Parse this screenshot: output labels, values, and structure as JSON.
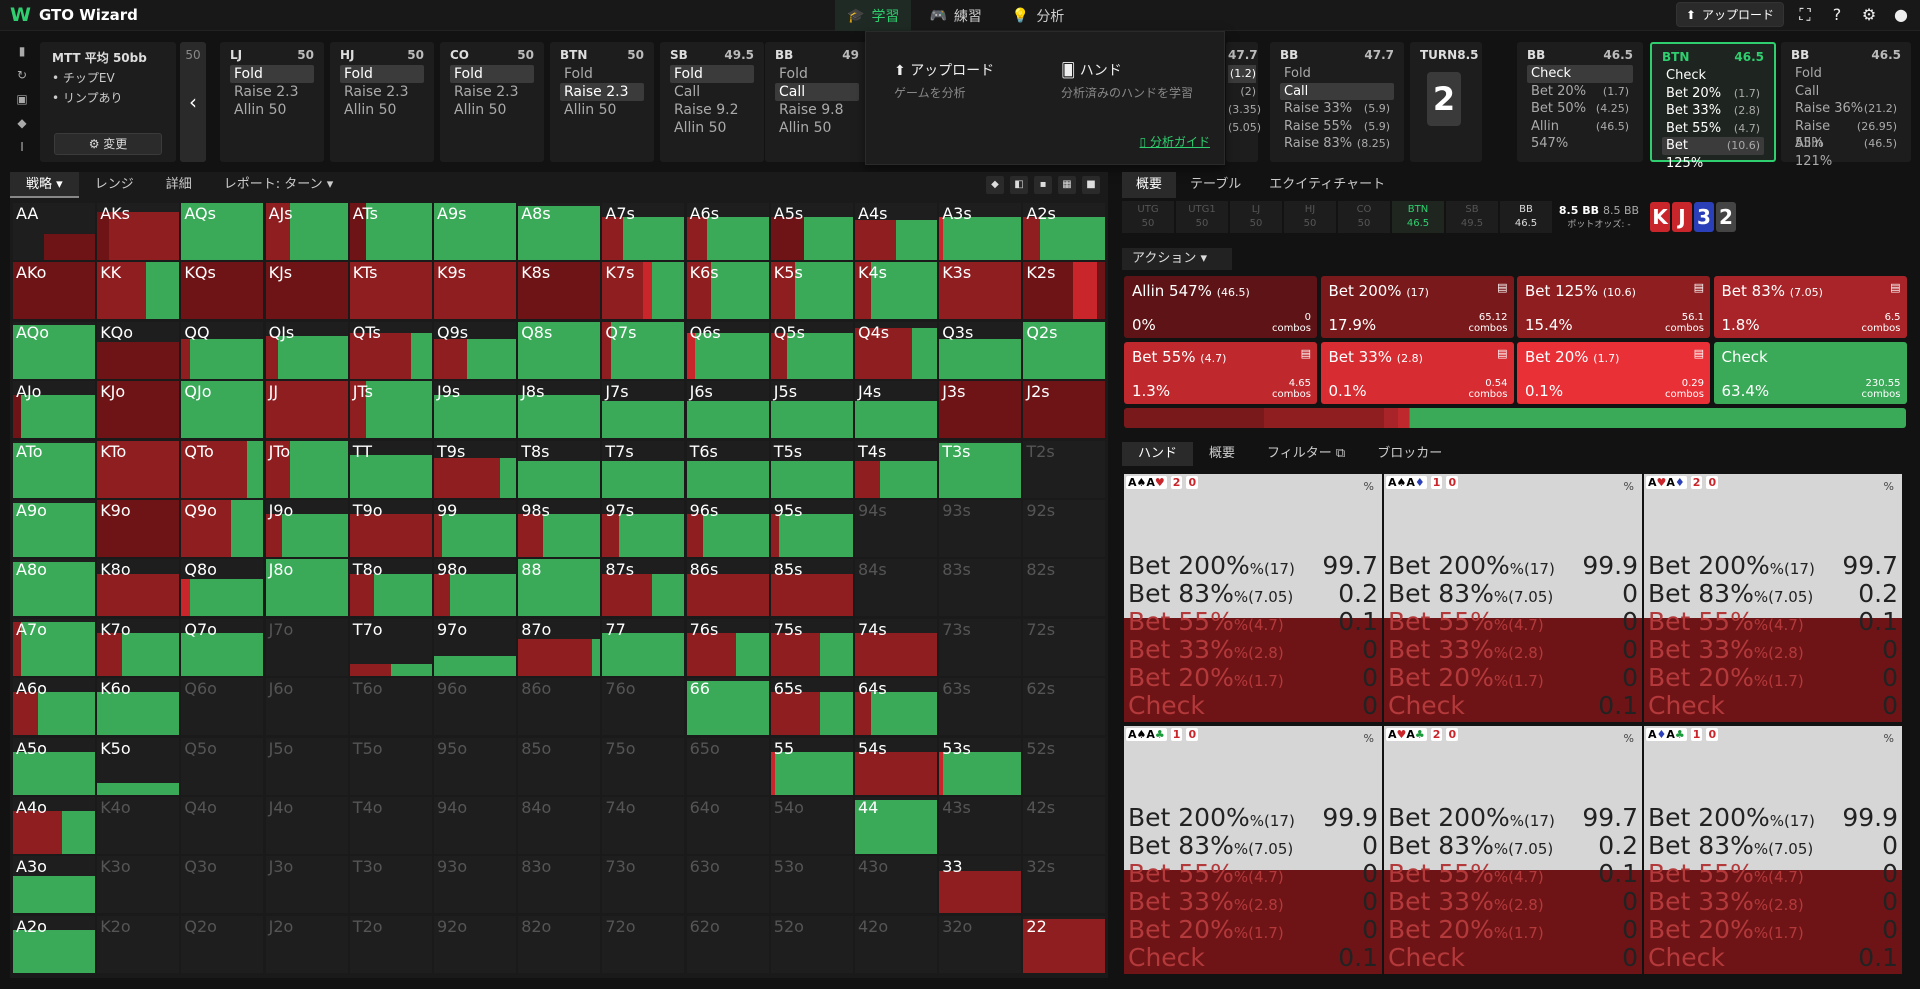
{
  "app": {
    "logo": "W",
    "title": "GTO Wizard"
  },
  "nav": [
    {
      "label": "学習",
      "icon": "graduation-icon",
      "active": true
    },
    {
      "label": "練習",
      "icon": "gamepad-icon",
      "active": false
    },
    {
      "label": "分析",
      "icon": "bulb-icon",
      "active": false
    }
  ],
  "top_right": {
    "upload": "アップロード"
  },
  "mtt": {
    "title": "MTT 平均 50bb",
    "bullets": [
      "• チップEV",
      "• リンプあり"
    ],
    "change": "変更"
  },
  "scroll_stack": "50",
  "positions": [
    {
      "name": "LJ",
      "stack": "50",
      "opts": [
        {
          "l": "Fold",
          "sel": true
        },
        {
          "l": "Raise 2.3"
        },
        {
          "l": "Allin 50"
        }
      ]
    },
    {
      "name": "HJ",
      "stack": "50",
      "opts": [
        {
          "l": "Fold",
          "sel": true
        },
        {
          "l": "Raise 2.3"
        },
        {
          "l": "Allin 50"
        }
      ]
    },
    {
      "name": "CO",
      "stack": "50",
      "opts": [
        {
          "l": "Fold",
          "sel": true
        },
        {
          "l": "Raise 2.3"
        },
        {
          "l": "Allin 50"
        }
      ]
    },
    {
      "name": "BTN",
      "stack": "50",
      "opts": [
        {
          "l": "Fold"
        },
        {
          "l": "Raise 2.3",
          "sel": true
        },
        {
          "l": "Allin 50"
        }
      ]
    },
    {
      "name": "SB",
      "stack": "49.5",
      "opts": [
        {
          "l": "Fold",
          "sel": true
        },
        {
          "l": "Call"
        },
        {
          "l": "Raise 9.2"
        },
        {
          "l": "Allin 50"
        }
      ]
    },
    {
      "name": "BB",
      "stack": "49",
      "opts": [
        {
          "l": "Fold"
        },
        {
          "l": "Call",
          "sel": true
        },
        {
          "l": "Raise 9.8"
        },
        {
          "l": "Allin 50"
        }
      ]
    }
  ],
  "hidden_pos": {
    "stack": "47.7",
    "vals": [
      "(1.2)",
      "(2)",
      "(3.35)",
      "(5.05)"
    ]
  },
  "positions2": [
    {
      "name": "BB",
      "stack": "47.7",
      "opts": [
        {
          "l": "Fold"
        },
        {
          "l": "Call",
          "sel": true
        },
        {
          "l": "Raise 33%",
          "v": "(5.9)"
        },
        {
          "l": "Raise 55%",
          "v": "(5.9)"
        },
        {
          "l": "Raise 83%",
          "v": "(8.25)"
        }
      ]
    },
    {
      "name": "BB",
      "stack": "46.5",
      "opts": [
        {
          "l": "Check",
          "sel": true
        },
        {
          "l": "Bet 20%",
          "v": "(1.7)"
        },
        {
          "l": "Bet 50%",
          "v": "(4.25)"
        },
        {
          "l": "Allin 547%",
          "v": "(46.5)"
        }
      ]
    },
    {
      "name": "BTN",
      "stack": "46.5",
      "opts": [
        {
          "l": "Check"
        },
        {
          "l": "Bet 20%",
          "v": "(1.7)"
        },
        {
          "l": "Bet 33%",
          "v": "(2.8)"
        },
        {
          "l": "Bet 55%",
          "v": "(4.7)"
        },
        {
          "l": "Bet 125%",
          "v": "(10.6)",
          "sel": true
        }
      ]
    },
    {
      "name": "BB",
      "stack": "46.5",
      "opts": [
        {
          "l": "Fold"
        },
        {
          "l": "Call"
        },
        {
          "l": "Raise 36%",
          "v": "(21.2)"
        },
        {
          "l": "Raise 55%",
          "v": "(26.95)"
        },
        {
          "l": "Allin 121%",
          "v": "(46.5)"
        }
      ]
    }
  ],
  "turn": {
    "label": "TURN",
    "size": "8.5",
    "card": "2"
  },
  "dropdown": {
    "upload": "アップロード",
    "upload_sub": "ゲームを分析",
    "hand": "ハンド",
    "hand_sub": "分析済みのハンドを学習",
    "guide": "分析ガイド"
  },
  "grid_tabs": [
    "戦略",
    "レンジ",
    "詳細",
    "レポート: ターン"
  ],
  "grid": [
    [
      "AA",
      "AKs",
      "AQs",
      "AJs",
      "ATs",
      "A9s",
      "A8s",
      "A7s",
      "A6s",
      "A5s",
      "A4s",
      "A3s",
      "A2s"
    ],
    [
      "AKo",
      "KK",
      "KQs",
      "KJs",
      "KTs",
      "K9s",
      "K8s",
      "K7s",
      "K6s",
      "K5s",
      "K4s",
      "K3s",
      "K2s"
    ],
    [
      "AQo",
      "KQo",
      "QQ",
      "QJs",
      "QTs",
      "Q9s",
      "Q8s",
      "Q7s",
      "Q6s",
      "Q5s",
      "Q4s",
      "Q3s",
      "Q2s"
    ],
    [
      "AJo",
      "KJo",
      "QJo",
      "JJ",
      "JTs",
      "J9s",
      "J8s",
      "J7s",
      "J6s",
      "J5s",
      "J4s",
      "J3s",
      "J2s"
    ],
    [
      "ATo",
      "KTo",
      "QTo",
      "JTo",
      "TT",
      "T9s",
      "T8s",
      "T7s",
      "T6s",
      "T5s",
      "T4s",
      "T3s",
      "T2s"
    ],
    [
      "A9o",
      "K9o",
      "Q9o",
      "J9o",
      "T9o",
      "99",
      "98s",
      "97s",
      "96s",
      "95s",
      "94s",
      "93s",
      "92s"
    ],
    [
      "A8o",
      "K8o",
      "Q8o",
      "J8o",
      "T8o",
      "98o",
      "88",
      "87s",
      "86s",
      "85s",
      "84s",
      "83s",
      "82s"
    ],
    [
      "A7o",
      "K7o",
      "Q7o",
      "J7o",
      "T7o",
      "97o",
      "87o",
      "77",
      "76s",
      "75s",
      "74s",
      "73s",
      "72s"
    ],
    [
      "A6o",
      "K6o",
      "Q6o",
      "J6o",
      "T6o",
      "96o",
      "86o",
      "76o",
      "66",
      "65s",
      "64s",
      "63s",
      "62s"
    ],
    [
      "A5o",
      "K5o",
      "Q5o",
      "J5o",
      "T5o",
      "95o",
      "85o",
      "75o",
      "65o",
      "55",
      "54s",
      "53s",
      "52s"
    ],
    [
      "A4o",
      "K4o",
      "Q4o",
      "J4o",
      "T4o",
      "94o",
      "84o",
      "74o",
      "64o",
      "54o",
      "44",
      "43s",
      "42s"
    ],
    [
      "A3o",
      "K3o",
      "Q3o",
      "J3o",
      "T3o",
      "93o",
      "83o",
      "73o",
      "63o",
      "53o",
      "43o",
      "33",
      "32s"
    ],
    [
      "A2o",
      "K2o",
      "Q2o",
      "J2o",
      "T2o",
      "92o",
      "82o",
      "72o",
      "62o",
      "52o",
      "42o",
      "32o",
      "22"
    ]
  ],
  "right_tabs": [
    "概要",
    "テーブル",
    "エクイティチャート"
  ],
  "seats": [
    {
      "n": "UTG",
      "s": "50"
    },
    {
      "n": "UTG1",
      "s": "50"
    },
    {
      "n": "LJ",
      "s": "50"
    },
    {
      "n": "HJ",
      "s": "50"
    },
    {
      "n": "CO",
      "s": "50"
    },
    {
      "n": "BTN",
      "s": "46.5",
      "act": true
    },
    {
      "n": "SB",
      "s": "49.5"
    },
    {
      "n": "BB",
      "s": "46.5",
      "on": true
    }
  ],
  "pot": {
    "main": "8.5 BB",
    "alt": "8.5 BB",
    "odds": "ポットオッズ: -"
  },
  "board": [
    {
      "r": "K",
      "c": "#c9262c"
    },
    {
      "r": "J",
      "c": "#c9262c"
    },
    {
      "r": "3",
      "c": "#2b3fb8"
    },
    {
      "r": "2",
      "c": "#444"
    }
  ],
  "action_label": "アクション",
  "actions": [
    {
      "name": "Allin 547%",
      "size": "(46.5)",
      "pct": "0%",
      "combos": "0",
      "color": "#5e1416"
    },
    {
      "name": "Bet 200%",
      "size": "(17)",
      "pct": "17.9%",
      "combos": "65.12",
      "color": "#7a191b"
    },
    {
      "name": "Bet 125%",
      "size": "(10.6)",
      "pct": "15.4%",
      "combos": "56.1",
      "color": "#8f1e21"
    },
    {
      "name": "Bet 83%",
      "size": "(7.05)",
      "pct": "1.8%",
      "combos": "6.5",
      "color": "#a82428"
    },
    {
      "name": "Bet 55%",
      "size": "(4.7)",
      "pct": "1.3%",
      "combos": "4.65",
      "color": "#bf282d"
    },
    {
      "name": "Bet 33%",
      "size": "(2.8)",
      "pct": "0.1%",
      "combos": "0.54",
      "color": "#d72c32"
    },
    {
      "name": "Bet 20%",
      "size": "(1.7)",
      "pct": "0.1%",
      "combos": "0.29",
      "color": "#ea3037"
    },
    {
      "name": "Check",
      "size": "",
      "pct": "63.4%",
      "combos": "230.55",
      "color": "#3aaa59"
    }
  ],
  "combos_label": "combos",
  "hand_tabs": [
    "ハンド",
    "概要",
    "フィルター",
    "ブロッカー"
  ],
  "hand_cards": [
    {
      "cards": "A♠A♥",
      "b1": "2",
      "b2": "0",
      "rows": [
        [
          "Bet 200%",
          "(17)",
          "99.7"
        ],
        [
          "Bet 83%",
          "(7.05)",
          "0.2"
        ],
        [
          "Bet 55%",
          "(4.7)",
          "0.1"
        ],
        [
          "Bet 33%",
          "(2.8)",
          "0"
        ],
        [
          "Bet 20%",
          "(1.7)",
          "0"
        ],
        [
          "Check",
          "",
          "0"
        ]
      ]
    },
    {
      "cards": "A♠A♦",
      "b1": "1",
      "b2": "0",
      "rows": [
        [
          "Bet 200%",
          "(17)",
          "99.9"
        ],
        [
          "Bet 83%",
          "(7.05)",
          "0"
        ],
        [
          "Bet 55%",
          "(4.7)",
          "0"
        ],
        [
          "Bet 33%",
          "(2.8)",
          "0"
        ],
        [
          "Bet 20%",
          "(1.7)",
          "0"
        ],
        [
          "Check",
          "",
          "0.1"
        ]
      ]
    },
    {
      "cards": "A♥A♦",
      "b1": "2",
      "b2": "0",
      "rows": [
        [
          "Bet 200%",
          "(17)",
          "99.7"
        ],
        [
          "Bet 83%",
          "(7.05)",
          "0.2"
        ],
        [
          "Bet 55%",
          "(4.7)",
          "0.1"
        ],
        [
          "Bet 33%",
          "(2.8)",
          "0"
        ],
        [
          "Bet 20%",
          "(1.7)",
          "0"
        ],
        [
          "Check",
          "",
          "0"
        ]
      ]
    },
    {
      "cards": "A♠A♣",
      "b1": "1",
      "b2": "0",
      "rows": [
        [
          "Bet 200%",
          "(17)",
          "99.9"
        ],
        [
          "Bet 83%",
          "(7.05)",
          "0"
        ],
        [
          "Bet 55%",
          "(4.7)",
          "0"
        ],
        [
          "Bet 33%",
          "(2.8)",
          "0"
        ],
        [
          "Bet 20%",
          "(1.7)",
          "0"
        ],
        [
          "Check",
          "",
          "0.1"
        ]
      ]
    },
    {
      "cards": "A♥A♣",
      "b1": "2",
      "b2": "0",
      "rows": [
        [
          "Bet 200%",
          "(17)",
          "99.7"
        ],
        [
          "Bet 83%",
          "(7.05)",
          "0.2"
        ],
        [
          "Bet 55%",
          "(4.7)",
          "0.1"
        ],
        [
          "Bet 33%",
          "(2.8)",
          "0"
        ],
        [
          "Bet 20%",
          "(1.7)",
          "0"
        ],
        [
          "Check",
          "",
          "0"
        ]
      ]
    },
    {
      "cards": "A♦A♣",
      "b1": "1",
      "b2": "0",
      "rows": [
        [
          "Bet 200%",
          "(17)",
          "99.9"
        ],
        [
          "Bet 83%",
          "(7.05)",
          "0"
        ],
        [
          "Bet 55%",
          "(4.7)",
          "0"
        ],
        [
          "Bet 33%",
          "(2.8)",
          "0"
        ],
        [
          "Bet 20%",
          "(1.7)",
          "0"
        ],
        [
          "Check",
          "",
          "0.1"
        ]
      ]
    }
  ],
  "pct_symbol": "%"
}
